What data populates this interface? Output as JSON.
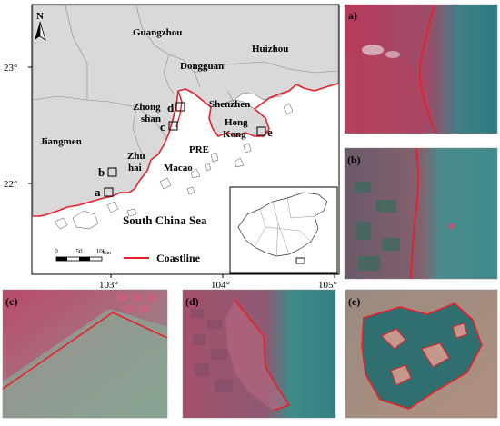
{
  "map": {
    "north_label": "N",
    "lat_labels": [
      "23°",
      "22°"
    ],
    "lon_labels": [
      "103°",
      "104°",
      "105°"
    ],
    "cities": {
      "guangzhou": "Guangzhou",
      "huizhou": "Huizhou",
      "dongguan": "Dongguan",
      "zhongshan_1": "Zhong",
      "zhongshan_2": "shan",
      "shenzhen": "Shenzhen",
      "hongkong_1": "Hong",
      "hongkong_2": "Kong",
      "jiangmen": "Jiangmen",
      "zhuhai_1": "Zhu",
      "zhuhai_2": "hai",
      "macao": "Macao",
      "pre": "PRE"
    },
    "sea_label": "South China Sea",
    "site_markers": [
      "a",
      "b",
      "c",
      "d",
      "e"
    ],
    "scale_ticks": [
      "0",
      "50",
      "100"
    ],
    "scale_unit": "Km",
    "legend_label": "Coastline",
    "colors": {
      "coastline": "#e8202a",
      "land": "#d9d9d9",
      "sea": "#ffffff"
    }
  },
  "panels": {
    "a": "a)",
    "b": "(b)",
    "c": "(c)",
    "d": "(d)",
    "e": "(e)"
  }
}
